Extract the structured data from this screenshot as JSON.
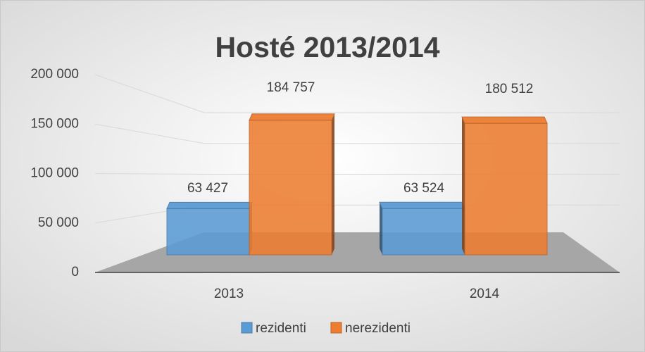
{
  "chart_data": {
    "type": "bar3d",
    "title": "Hosté 2013/2014",
    "categories": [
      "2013",
      "2014"
    ],
    "series": [
      {
        "name": "rezidenti",
        "color": "#5b9bd5",
        "values": [
          63427,
          63524
        ],
        "value_labels": [
          "63 427",
          "63 524"
        ]
      },
      {
        "name": "nerezidenti",
        "color": "#ed7d31",
        "values": [
          184757,
          180512
        ],
        "value_labels": [
          "184 757",
          "180 512"
        ]
      }
    ],
    "ylim": [
      0,
      200000
    ],
    "yticks": [
      0,
      {
        "value": 50000,
        "label": "50 000"
      },
      {
        "value": 100000,
        "label": "100 000"
      },
      {
        "value": 150000,
        "label": "150 000"
      },
      {
        "value": 200000,
        "label": "200 000"
      }
    ],
    "grid": true,
    "legend": "bottom"
  }
}
